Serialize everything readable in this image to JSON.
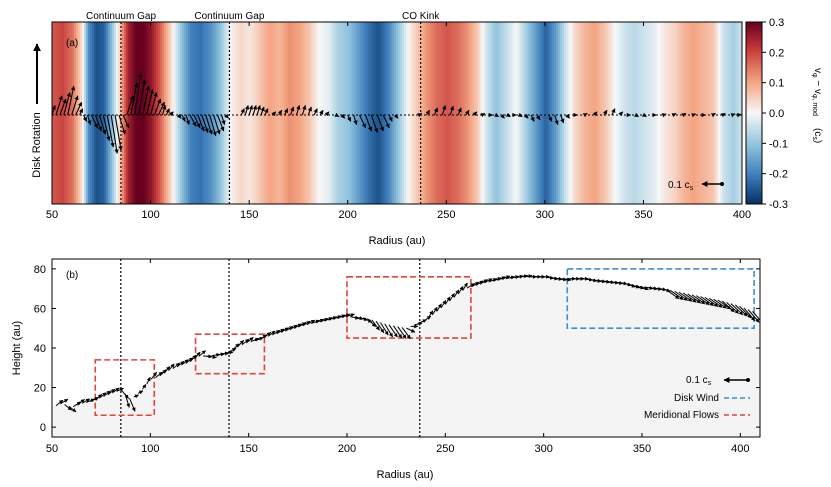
{
  "chart_data": [
    {
      "panel_label": "(a)",
      "type": "heatmap",
      "xlabel": "Radius (au)",
      "ylabel": "Disk Rotation",
      "xlim": [
        50,
        400
      ],
      "xticks": [
        "50",
        "100",
        "150",
        "200",
        "250",
        "300",
        "350",
        "400"
      ],
      "xtick_values": [
        50,
        100,
        150,
        200,
        250,
        300,
        350,
        400
      ],
      "colorbar": {
        "label": "v_φ − v_φ,mod (c_s)",
        "label_main": "v",
        "label_sub": "φ",
        "label_rest": " − v",
        "label_sub2": "φ, mod",
        "label_unit": "(c",
        "label_unit_sub": "s",
        "label_unit_end": ")",
        "ticks": [
          "0.3",
          "0.2",
          "0.1",
          "0.0",
          "-0.1",
          "-0.2",
          "-0.3"
        ],
        "tick_values": [
          0.3,
          0.2,
          0.1,
          0.0,
          -0.1,
          -0.2,
          -0.3
        ],
        "vmin": -0.3,
        "vmax": 0.3,
        "cmap": "RdBu_r"
      },
      "annotations": [
        {
          "text": "Continuum Gap",
          "x": 85
        },
        {
          "text": "Continuum Gap",
          "x": 140
        },
        {
          "text": "CO Kink",
          "x": 237
        }
      ],
      "scale_label": "0.1 c",
      "scale_label_sub": "s",
      "vphi_profile": {
        "r": [
          50,
          55,
          60,
          65,
          68,
          72,
          76,
          80,
          84,
          86,
          88,
          92,
          96,
          100,
          104,
          108,
          112,
          116,
          120,
          125,
          130,
          135,
          140,
          145,
          150,
          155,
          160,
          165,
          170,
          175,
          180,
          185,
          190,
          195,
          200,
          205,
          210,
          215,
          220,
          225,
          230,
          235,
          240,
          245,
          250,
          255,
          260,
          265,
          270,
          275,
          280,
          285,
          290,
          295,
          300,
          305,
          310,
          315,
          320,
          325,
          330,
          335,
          340,
          345,
          350,
          355,
          360,
          365,
          370,
          375,
          380,
          385,
          390,
          395,
          400
        ],
        "dv": [
          0.18,
          0.2,
          0.15,
          0.02,
          -0.18,
          -0.26,
          -0.24,
          -0.1,
          0.05,
          0.15,
          0.24,
          0.3,
          0.3,
          0.26,
          0.18,
          0.08,
          -0.02,
          -0.12,
          -0.2,
          -0.22,
          -0.18,
          -0.1,
          0.0,
          0.04,
          0.02,
          0.06,
          0.1,
          0.08,
          0.12,
          0.1,
          0.06,
          0.0,
          -0.02,
          -0.08,
          -0.1,
          -0.16,
          -0.22,
          -0.26,
          -0.2,
          -0.1,
          0.0,
          0.06,
          0.12,
          0.16,
          0.18,
          0.16,
          0.12,
          0.06,
          -0.04,
          -0.1,
          -0.05,
          0.0,
          -0.08,
          -0.16,
          -0.24,
          -0.16,
          -0.04,
          0.04,
          0.08,
          0.1,
          0.06,
          0.0,
          -0.04,
          -0.06,
          -0.04,
          -0.02,
          0.02,
          0.04,
          0.08,
          0.1,
          0.08,
          0.06,
          -0.04,
          -0.08,
          -0.04
        ]
      },
      "arrow_groups": [
        {
          "x0": 50,
          "x1": 64,
          "pts": [
            [
              50,
              0.3
            ],
            [
              52,
              0.6
            ],
            [
              54,
              0.5
            ],
            [
              56,
              0.7
            ],
            [
              58,
              0.9
            ],
            [
              60,
              0.6
            ],
            [
              62,
              0.4
            ],
            [
              64,
              0.2
            ]
          ]
        },
        {
          "x0": 66,
          "x1": 86,
          "pts": [
            [
              66,
              -0.2
            ],
            [
              68,
              -0.3
            ],
            [
              70,
              -0.4
            ],
            [
              72,
              -0.5
            ],
            [
              74,
              -0.6
            ],
            [
              76,
              -0.8
            ],
            [
              78,
              -1.0
            ],
            [
              80,
              -1.2
            ],
            [
              82,
              -1.1
            ],
            [
              84,
              -0.6
            ],
            [
              86,
              -0.4
            ]
          ]
        },
        {
          "x0": 88,
          "x1": 110,
          "pts": [
            [
              88,
              0.6
            ],
            [
              90,
              1.0
            ],
            [
              92,
              1.3
            ],
            [
              94,
              1.1
            ],
            [
              96,
              0.9
            ],
            [
              98,
              0.8
            ],
            [
              100,
              0.7
            ],
            [
              102,
              0.5
            ],
            [
              104,
              0.4
            ],
            [
              106,
              0.3
            ],
            [
              108,
              0.2
            ],
            [
              110,
              0.1
            ]
          ]
        },
        {
          "x0": 112,
          "x1": 140,
          "pts": [
            [
              114,
              -0.1
            ],
            [
              116,
              -0.2
            ],
            [
              118,
              -0.3
            ],
            [
              120,
              -0.35
            ],
            [
              122,
              -0.4
            ],
            [
              124,
              -0.5
            ],
            [
              126,
              -0.55
            ],
            [
              128,
              -0.6
            ],
            [
              130,
              -0.65
            ],
            [
              132,
              -0.6
            ],
            [
              134,
              -0.5
            ],
            [
              136,
              -0.3
            ],
            [
              138,
              -0.1
            ]
          ]
        },
        {
          "x0": 144,
          "x1": 160,
          "pts": [
            [
              146,
              0.2
            ],
            [
              148,
              0.3
            ],
            [
              150,
              0.3
            ],
            [
              152,
              0.3
            ],
            [
              154,
              0.3
            ],
            [
              156,
              0.25
            ],
            [
              158,
              0.2
            ]
          ]
        },
        {
          "x0": 160,
          "x1": 192,
          "pts": [
            [
              162,
              0.1
            ],
            [
              165,
              0.15
            ],
            [
              168,
              0.2
            ],
            [
              171,
              0.25
            ],
            [
              174,
              0.3
            ],
            [
              177,
              0.3
            ],
            [
              180,
              0.25
            ],
            [
              183,
              0.2
            ],
            [
              186,
              0.15
            ],
            [
              189,
              0.1
            ]
          ]
        },
        {
          "x0": 192,
          "x1": 225,
          "pts": [
            [
              194,
              -0.05
            ],
            [
              197,
              -0.1
            ],
            [
              200,
              -0.2
            ],
            [
              203,
              -0.3
            ],
            [
              206,
              -0.4
            ],
            [
              209,
              -0.5
            ],
            [
              212,
              -0.55
            ],
            [
              215,
              -0.5
            ],
            [
              218,
              -0.4
            ],
            [
              221,
              -0.2
            ],
            [
              224,
              -0.1
            ]
          ]
        },
        {
          "x0": 235,
          "x1": 270,
          "pts": [
            [
              236,
              0.05
            ],
            [
              240,
              0.15
            ],
            [
              244,
              0.22
            ],
            [
              248,
              0.3
            ],
            [
              252,
              0.28
            ],
            [
              256,
              0.22
            ],
            [
              260,
              0.15
            ],
            [
              264,
              0.1
            ],
            [
              268,
              0.05
            ]
          ]
        },
        {
          "x0": 270,
          "x1": 300,
          "pts": [
            [
              272,
              0
            ],
            [
              275,
              -0.05
            ],
            [
              278,
              -0.1
            ],
            [
              281,
              -0.05
            ],
            [
              284,
              0
            ],
            [
              287,
              -0.05
            ],
            [
              290,
              -0.1
            ],
            [
              293,
              -0.2
            ],
            [
              296,
              -0.15
            ]
          ]
        },
        {
          "x0": 300,
          "x1": 340,
          "pts": [
            [
              302,
              -0.2
            ],
            [
              305,
              -0.3
            ],
            [
              308,
              -0.25
            ],
            [
              311,
              -0.1
            ],
            [
              315,
              0
            ],
            [
              320,
              0.05
            ],
            [
              325,
              0.1
            ],
            [
              330,
              0.15
            ],
            [
              334,
              0.2
            ],
            [
              338,
              0.1
            ]
          ]
        },
        {
          "x0": 340,
          "x1": 400,
          "pts": [
            [
              342,
              0
            ],
            [
              346,
              -0.05
            ],
            [
              350,
              -0.05
            ],
            [
              355,
              0
            ],
            [
              360,
              0.03
            ],
            [
              365,
              0.05
            ],
            [
              370,
              0.05
            ],
            [
              375,
              0.03
            ],
            [
              380,
              0
            ],
            [
              385,
              0.05
            ],
            [
              390,
              0.05
            ],
            [
              395,
              0.03
            ],
            [
              398,
              0.02
            ]
          ]
        }
      ]
    },
    {
      "panel_label": "(b)",
      "type": "line",
      "xlabel": "Radius (au)",
      "ylabel": "Height (au)",
      "xlim": [
        50,
        410
      ],
      "ylim": [
        -5,
        85
      ],
      "xticks": [
        "50",
        "100",
        "150",
        "200",
        "250",
        "300",
        "350",
        "400"
      ],
      "xtick_values": [
        50,
        100,
        150,
        200,
        250,
        300,
        350,
        400
      ],
      "yticks": [
        "0",
        "20",
        "40",
        "60",
        "80"
      ],
      "ytick_values": [
        0,
        20,
        40,
        60,
        80
      ],
      "surface": {
        "r": [
          50,
          55,
          60,
          65,
          70,
          75,
          80,
          85,
          90,
          95,
          100,
          105,
          110,
          115,
          120,
          125,
          130,
          135,
          140,
          145,
          150,
          155,
          160,
          170,
          180,
          190,
          200,
          210,
          220,
          230,
          240,
          250,
          260,
          270,
          280,
          290,
          300,
          310,
          320,
          330,
          340,
          350,
          360,
          370,
          380,
          390,
          400,
          410
        ],
        "z": [
          10,
          12,
          10,
          12,
          13,
          15,
          17,
          19,
          14,
          18,
          24,
          26,
          29,
          31,
          33,
          36,
          36,
          37,
          38,
          41,
          43,
          44,
          46,
          49,
          52,
          54,
          56,
          55,
          52,
          50,
          54,
          62,
          70,
          73,
          75,
          76,
          76,
          75,
          75,
          74,
          73,
          71,
          70,
          68,
          66,
          64,
          61,
          57
        ]
      },
      "vlines": [
        85,
        140,
        237
      ],
      "boxes": [
        {
          "kind": "meridional",
          "x0": 72,
          "x1": 102,
          "y0": 6,
          "y1": 34
        },
        {
          "kind": "meridional",
          "x0": 123,
          "x1": 158,
          "y0": 27,
          "y1": 47
        },
        {
          "kind": "meridional",
          "x0": 200,
          "x1": 263,
          "y0": 45,
          "y1": 76
        },
        {
          "kind": "wind",
          "x0": 312,
          "x1": 407,
          "y0": 50,
          "y1": 80
        }
      ],
      "legend": {
        "scale_label": "0.1 c",
        "scale_label_sub": "s",
        "entries": [
          {
            "name": "Disk Wind",
            "color": "#3a8fd6"
          },
          {
            "name": "Meridional Flows",
            "color": "#e0443a"
          }
        ],
        "position": "bottom-right"
      },
      "colors": {
        "wind": "#3a8fd6",
        "meridional": "#e0443a",
        "surface_fill": "#f4f4f4"
      }
    }
  ]
}
